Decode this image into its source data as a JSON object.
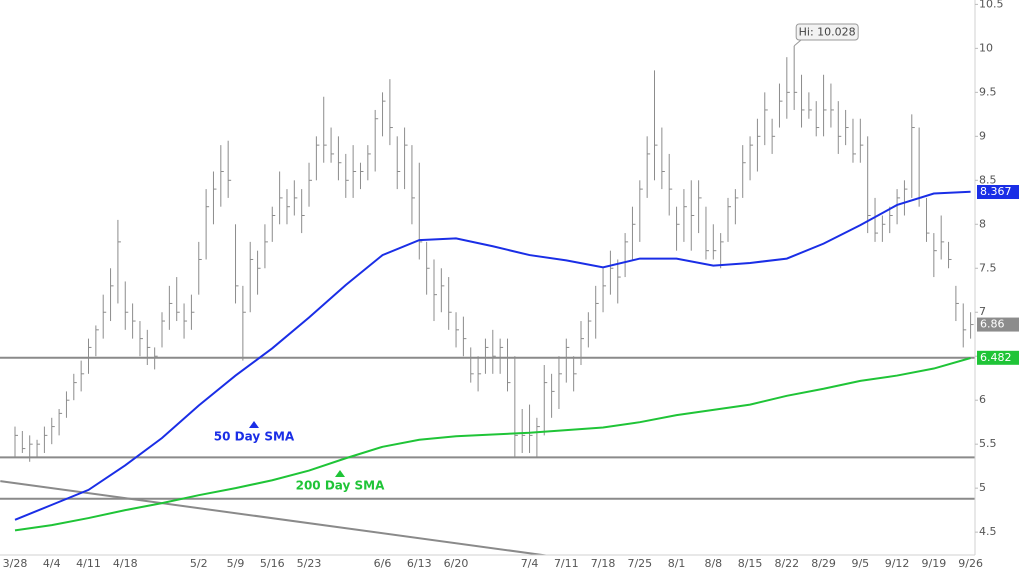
{
  "chart_data": {
    "type": "ohlc",
    "categories": [
      "3/28",
      null,
      null,
      null,
      null,
      "4/4",
      null,
      null,
      null,
      null,
      "4/11",
      null,
      null,
      null,
      null,
      "4/18",
      null,
      null,
      null,
      null,
      null,
      null,
      null,
      null,
      null,
      "5/2",
      null,
      null,
      null,
      null,
      "5/9",
      null,
      null,
      null,
      null,
      "5/16",
      null,
      null,
      null,
      null,
      "5/23",
      null,
      null,
      null,
      null,
      null,
      null,
      null,
      null,
      null,
      "6/6",
      null,
      null,
      null,
      null,
      "6/13",
      null,
      null,
      null,
      null,
      "6/20",
      null,
      null,
      null,
      null,
      null,
      null,
      null,
      null,
      null,
      "7/4",
      null,
      null,
      null,
      null,
      "7/11",
      null,
      null,
      null,
      null,
      "7/18",
      null,
      null,
      null,
      null,
      "7/25",
      null,
      null,
      null,
      null,
      "8/1",
      null,
      null,
      null,
      null,
      "8/8",
      null,
      null,
      null,
      null,
      "8/15",
      null,
      null,
      null,
      null,
      "8/22",
      null,
      null,
      null,
      null,
      "8/29",
      null,
      null,
      null,
      null,
      "9/5",
      null,
      null,
      null,
      null,
      "9/12",
      null,
      null,
      null,
      null,
      "9/19",
      null,
      null,
      null,
      null,
      "9/26"
    ],
    "high": [
      5.7,
      5.65,
      5.6,
      5.55,
      5.7,
      5.8,
      5.9,
      6.1,
      6.3,
      6.45,
      6.7,
      6.85,
      7.2,
      7.5,
      8.05,
      7.35,
      7.1,
      6.9,
      6.8,
      6.6,
      7.0,
      7.3,
      7.4,
      7.1,
      7.2,
      7.8,
      8.4,
      8.6,
      8.9,
      8.95,
      8.0,
      7.3,
      7.8,
      7.7,
      8.0,
      8.2,
      8.6,
      8.4,
      8.5,
      8.4,
      8.7,
      9.0,
      9.45,
      9.1,
      9.0,
      8.8,
      8.9,
      8.7,
      8.9,
      9.3,
      9.5,
      9.65,
      9.0,
      9.1,
      8.9,
      8.7,
      7.8,
      7.6,
      7.5,
      7.4,
      7.0,
      6.95,
      6.6,
      6.5,
      6.7,
      6.8,
      6.7,
      6.7,
      6.5,
      5.9,
      5.95,
      5.8,
      6.4,
      6.3,
      6.5,
      6.7,
      6.5,
      6.9,
      7.0,
      7.3,
      7.5,
      7.7,
      7.6,
      7.9,
      8.2,
      8.5,
      9.0,
      9.75,
      9.1,
      8.8,
      8.2,
      8.4,
      8.5,
      8.5,
      8.2,
      8.0,
      7.9,
      8.3,
      8.4,
      8.9,
      9.0,
      9.2,
      9.5,
      9.2,
      9.6,
      9.9,
      10.028,
      9.7,
      9.5,
      9.4,
      9.7,
      9.6,
      9.4,
      9.3,
      9.2,
      9.2,
      9.0,
      8.3,
      8.1,
      8.2,
      8.4,
      8.5,
      9.25,
      9.1,
      8.3,
      7.9,
      8.1,
      7.8,
      7.3,
      7.1,
      7.0
    ],
    "low": [
      5.35,
      5.4,
      5.3,
      5.35,
      5.4,
      5.5,
      5.6,
      5.8,
      6.0,
      6.1,
      6.3,
      6.5,
      6.7,
      6.9,
      7.1,
      6.8,
      6.7,
      6.5,
      6.4,
      6.35,
      6.6,
      6.8,
      6.9,
      6.7,
      6.8,
      7.2,
      7.6,
      8.0,
      8.2,
      8.3,
      7.1,
      6.45,
      7.0,
      7.2,
      7.5,
      7.8,
      8.0,
      8.0,
      8.1,
      7.9,
      8.2,
      8.5,
      8.7,
      8.7,
      8.5,
      8.3,
      8.3,
      8.4,
      8.5,
      8.6,
      9.0,
      8.9,
      8.4,
      8.4,
      8.0,
      7.6,
      7.2,
      6.9,
      7.0,
      6.8,
      6.6,
      6.5,
      6.2,
      6.1,
      6.3,
      6.3,
      6.3,
      6.1,
      5.35,
      5.4,
      5.4,
      5.35,
      5.6,
      5.8,
      5.9,
      6.2,
      6.1,
      6.4,
      6.6,
      6.7,
      7.0,
      7.2,
      7.1,
      7.4,
      7.6,
      7.8,
      8.3,
      8.5,
      8.4,
      8.1,
      7.7,
      7.8,
      7.7,
      7.9,
      7.6,
      7.6,
      7.5,
      7.8,
      8.0,
      8.3,
      8.5,
      8.6,
      8.9,
      8.8,
      9.1,
      9.2,
      9.3,
      9.1,
      9.2,
      9.0,
      9.0,
      9.1,
      8.8,
      8.9,
      8.7,
      8.7,
      7.9,
      7.8,
      7.8,
      7.9,
      8.0,
      8.1,
      8.3,
      8.2,
      7.8,
      7.4,
      7.6,
      7.5,
      6.9,
      6.6,
      6.7
    ],
    "close": [
      5.6,
      5.45,
      5.5,
      5.5,
      5.6,
      5.7,
      5.85,
      6.0,
      6.2,
      6.3,
      6.6,
      6.8,
      7.0,
      7.3,
      7.8,
      7.0,
      6.9,
      6.7,
      6.6,
      6.5,
      6.9,
      7.1,
      7.0,
      6.9,
      7.0,
      7.6,
      8.2,
      8.4,
      8.6,
      8.5,
      7.3,
      7.0,
      7.6,
      7.5,
      7.8,
      8.1,
      8.3,
      8.2,
      8.3,
      8.1,
      8.5,
      8.9,
      8.9,
      8.8,
      8.7,
      8.5,
      8.6,
      8.6,
      8.8,
      9.2,
      9.4,
      9.1,
      8.6,
      8.9,
      8.3,
      7.8,
      7.5,
      7.2,
      7.3,
      7.0,
      6.8,
      6.7,
      6.3,
      6.3,
      6.6,
      6.5,
      6.6,
      6.2,
      5.6,
      5.6,
      5.6,
      5.7,
      6.2,
      6.1,
      6.3,
      6.6,
      6.3,
      6.7,
      6.9,
      7.1,
      7.3,
      7.5,
      7.4,
      7.8,
      8.0,
      8.4,
      8.8,
      8.9,
      8.6,
      8.4,
      8.0,
      8.2,
      8.1,
      8.3,
      7.7,
      7.7,
      7.8,
      8.2,
      8.3,
      8.7,
      8.9,
      9.0,
      9.3,
      9.0,
      9.4,
      9.5,
      9.5,
      9.3,
      9.3,
      9.1,
      9.3,
      9.3,
      9.0,
      9.1,
      8.8,
      8.9,
      8.1,
      7.9,
      8.0,
      8.1,
      8.3,
      8.4,
      9.1,
      8.3,
      7.9,
      7.7,
      7.8,
      7.6,
      7.1,
      6.8,
      6.86
    ],
    "bar_color": "#8c8c8c",
    "hi_label": "Hi: 10.028",
    "series": [
      {
        "name": "50 Day SMA",
        "color": "#1a2ee6",
        "x": [
          0,
          5,
          10,
          15,
          20,
          25,
          30,
          35,
          40,
          45,
          50,
          55,
          60,
          65,
          70,
          75,
          80,
          85,
          90,
          95,
          100,
          105,
          110,
          115,
          120,
          125,
          130
        ],
        "values": [
          4.64,
          4.81,
          4.98,
          5.26,
          5.57,
          5.94,
          6.28,
          6.59,
          6.94,
          7.31,
          7.65,
          7.82,
          7.84,
          7.75,
          7.65,
          7.59,
          7.51,
          7.61,
          7.61,
          7.53,
          7.56,
          7.61,
          7.78,
          7.99,
          8.22,
          8.35,
          8.37
        ],
        "last": 8.367
      },
      {
        "name": "200 Day SMA",
        "color": "#1fc437",
        "x": [
          0,
          5,
          10,
          15,
          20,
          25,
          30,
          35,
          40,
          45,
          50,
          55,
          60,
          65,
          70,
          75,
          80,
          85,
          90,
          95,
          100,
          105,
          110,
          115,
          120,
          125,
          130
        ],
        "values": [
          4.52,
          4.58,
          4.66,
          4.75,
          4.83,
          4.92,
          5.0,
          5.09,
          5.2,
          5.34,
          5.47,
          5.55,
          5.59,
          5.61,
          5.63,
          5.66,
          5.69,
          5.75,
          5.83,
          5.89,
          5.95,
          6.05,
          6.13,
          6.22,
          6.28,
          6.36,
          6.48
        ],
        "last": 6.482
      }
    ],
    "levels": [
      6.482,
      5.35,
      4.88
    ],
    "level_color": "#8a8a8a",
    "trendline": {
      "x": [
        -2,
        73.5
      ],
      "values": [
        5.08,
        4.22
      ],
      "color": "#8a8a8a"
    },
    "last_color": "#8c8c8c",
    "xlim": [
      -2.04,
      130.6
    ],
    "ylim": [
      4.24,
      10.55
    ],
    "yticks": [
      4.5,
      5,
      5.5,
      6,
      6.5,
      7,
      7.5,
      8,
      8.5,
      9,
      9.5,
      10,
      10.5
    ],
    "grid": false
  }
}
